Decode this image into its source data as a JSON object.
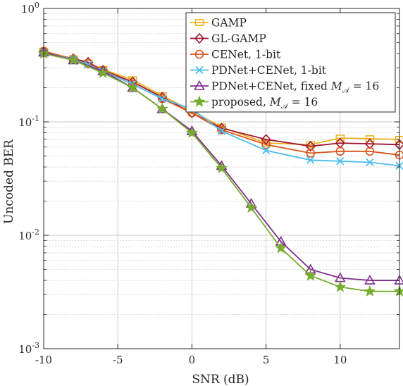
{
  "chart_data": {
    "type": "line",
    "xlabel": "SNR (dB)",
    "ylabel": "Uncoded BER",
    "xlim": [
      -10,
      14
    ],
    "ylim": [
      0.001,
      1
    ],
    "yscale": "log",
    "grid": true,
    "legend_position": "top-right",
    "x_ticks": [
      {
        "value": -10,
        "label": "-10"
      },
      {
        "value": -5,
        "label": "-5"
      },
      {
        "value": 0,
        "label": "0"
      },
      {
        "value": 5,
        "label": "5"
      },
      {
        "value": 10,
        "label": "10"
      }
    ],
    "y_ticks": [
      {
        "value": 1,
        "base": "10",
        "exp": "0"
      },
      {
        "value": 0.1,
        "base": "10",
        "exp": "-1"
      },
      {
        "value": 0.01,
        "base": "10",
        "exp": "-2"
      },
      {
        "value": 0.001,
        "base": "10",
        "exp": "-3"
      }
    ],
    "series": [
      {
        "name": "GAMP",
        "color": "#EDB120",
        "marker": "square",
        "x": [
          -10,
          -8,
          -7,
          -6,
          -4,
          -2,
          0,
          2,
          5,
          8,
          10,
          12,
          14
        ],
        "y": [
          0.42,
          0.36,
          0.33,
          0.29,
          0.235,
          0.17,
          0.125,
          0.09,
          0.065,
          0.063,
          0.072,
          0.071,
          0.07
        ]
      },
      {
        "name": "GL-GAMP",
        "color": "#A2142F",
        "marker": "diamond",
        "x": [
          -10,
          -8,
          -7,
          -6,
          -4,
          -2,
          0,
          2,
          5,
          8,
          10,
          12,
          14
        ],
        "y": [
          0.41,
          0.36,
          0.335,
          0.285,
          0.225,
          0.165,
          0.12,
          0.088,
          0.07,
          0.061,
          0.065,
          0.064,
          0.063
        ]
      },
      {
        "name": "CENet, 1-bit",
        "color": "#D95319",
        "marker": "circle",
        "x": [
          -10,
          -8,
          -7,
          -6,
          -4,
          -2,
          0,
          2,
          5,
          8,
          10,
          12,
          14
        ],
        "y": [
          0.42,
          0.355,
          0.325,
          0.285,
          0.215,
          0.16,
          0.12,
          0.085,
          0.063,
          0.053,
          0.055,
          0.055,
          0.051
        ]
      },
      {
        "name": "PDNet+CENet, 1-bit",
        "color": "#4DBEEE",
        "marker": "x",
        "x": [
          -10,
          -8,
          -7,
          -6,
          -4,
          -2,
          0,
          2,
          5,
          8,
          10,
          12,
          14
        ],
        "y": [
          0.41,
          0.355,
          0.32,
          0.28,
          0.215,
          0.16,
          0.13,
          0.083,
          0.056,
          0.046,
          0.045,
          0.044,
          0.041
        ]
      },
      {
        "name": "PDNet+CENet, fixed ",
        "legend_math": "M",
        "legend_math_sub": "𝒜",
        "legend_suffix": " = 16",
        "color": "#7E2F8E",
        "marker": "triangle",
        "x": [
          -10,
          -8,
          -6,
          -4,
          -2,
          0,
          2,
          4,
          6,
          8,
          10,
          12,
          14
        ],
        "y": [
          0.41,
          0.35,
          0.28,
          0.2,
          0.13,
          0.083,
          0.041,
          0.019,
          0.0088,
          0.005,
          0.0042,
          0.004,
          0.004
        ]
      },
      {
        "name": "proposed, ",
        "legend_math": "M",
        "legend_math_sub": "𝒜",
        "legend_suffix": " = 16",
        "color": "#77AC30",
        "marker": "star",
        "x": [
          -10,
          -8,
          -6,
          -4,
          -2,
          0,
          2,
          4,
          6,
          8,
          10,
          12,
          14
        ],
        "y": [
          0.4,
          0.35,
          0.27,
          0.2,
          0.13,
          0.08,
          0.039,
          0.0175,
          0.0077,
          0.0044,
          0.0035,
          0.0032,
          0.0032
        ]
      }
    ]
  }
}
